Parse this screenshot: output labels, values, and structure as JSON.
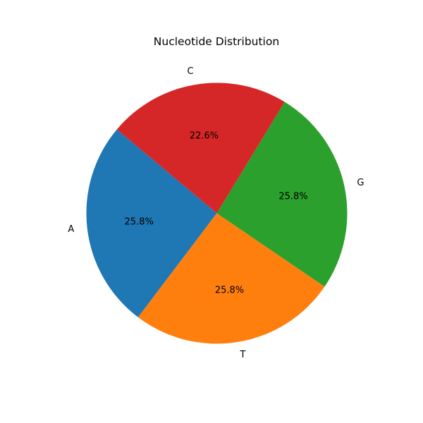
{
  "chart_data": {
    "type": "pie",
    "title": "Nucleotide Distribution",
    "categories": [
      "A",
      "T",
      "G",
      "C"
    ],
    "values": [
      25.8,
      25.8,
      25.8,
      22.6
    ],
    "percent_labels": [
      "25.8%",
      "25.8%",
      "25.8%",
      "22.6%"
    ],
    "colors": [
      "#1f77b4",
      "#ff7f0e",
      "#2ca02c",
      "#d62728"
    ],
    "start_angle_deg": 140,
    "direction": "counterclockwise",
    "legend": "none"
  }
}
